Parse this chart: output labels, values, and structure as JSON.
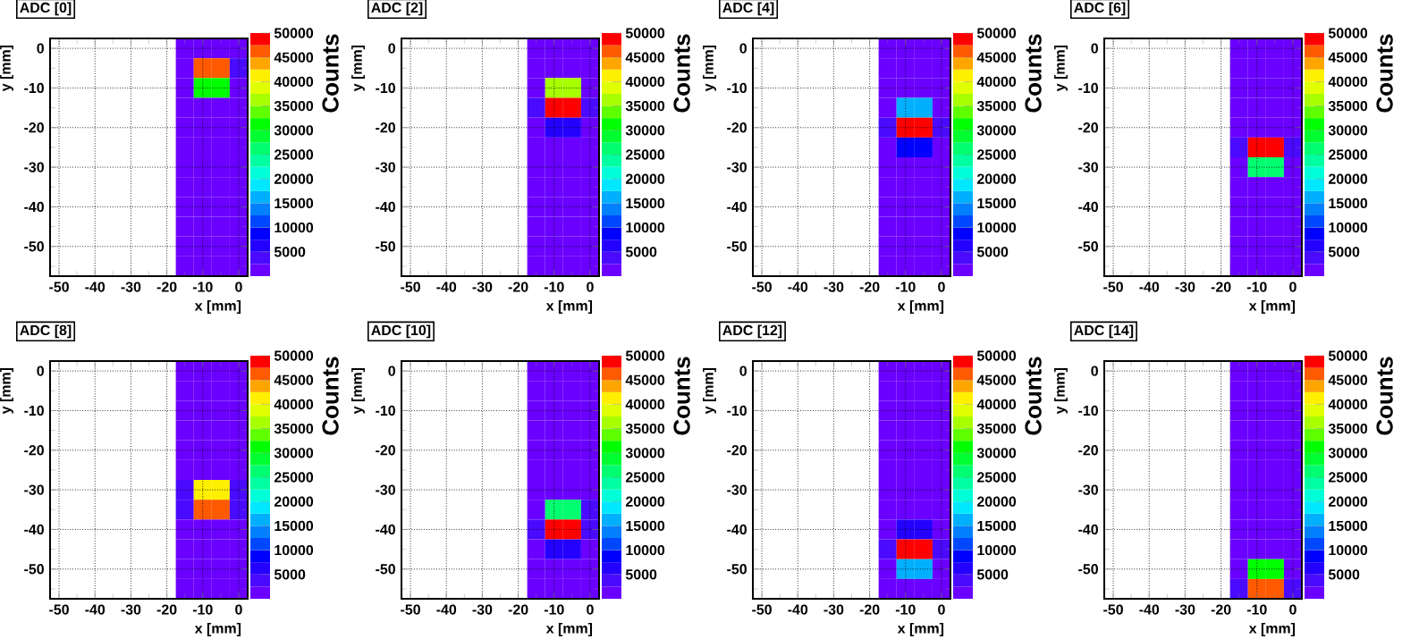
{
  "chart_data": [
    {
      "type": "heatmap",
      "title": "ADC [0]",
      "xlabel": "x [mm]",
      "ylabel": "y [mm]",
      "clabel": "Counts",
      "grid": true,
      "clim": [
        0,
        50000
      ],
      "cticks": [
        5000,
        10000,
        15000,
        20000,
        25000,
        30000,
        35000,
        40000,
        45000,
        50000
      ],
      "categories": [
        "-50",
        null,
        "-40",
        null,
        "-30",
        null,
        "-20",
        null,
        "-10",
        null,
        "0"
      ],
      "y_categories": [
        "0",
        null,
        "-10",
        null,
        "-20",
        null,
        "-30",
        null,
        "-40",
        null,
        "-50",
        null
      ],
      "cells": [
        [
          null,
          null,
          null,
          null,
          null,
          null,
          null,
          1000,
          1000,
          1000,
          1000
        ],
        [
          null,
          null,
          null,
          null,
          null,
          null,
          null,
          2000,
          45000,
          45000,
          3000
        ],
        [
          null,
          null,
          null,
          null,
          null,
          null,
          null,
          2000,
          30000,
          30000,
          2000
        ],
        [
          null,
          null,
          null,
          null,
          null,
          null,
          null,
          1000,
          1000,
          1000,
          1000
        ],
        [
          null,
          null,
          null,
          null,
          null,
          null,
          null,
          1000,
          1000,
          1000,
          1000
        ],
        [
          null,
          null,
          null,
          null,
          null,
          null,
          null,
          1000,
          1000,
          1000,
          1000
        ],
        [
          null,
          null,
          null,
          null,
          null,
          null,
          null,
          1000,
          1000,
          1000,
          1000
        ],
        [
          null,
          null,
          null,
          null,
          null,
          null,
          null,
          1000,
          1000,
          1000,
          1000
        ],
        [
          null,
          null,
          null,
          null,
          null,
          null,
          null,
          1000,
          1000,
          1000,
          1000
        ],
        [
          null,
          null,
          null,
          null,
          null,
          null,
          null,
          1000,
          1000,
          1000,
          1000
        ],
        [
          null,
          null,
          null,
          null,
          null,
          null,
          null,
          1000,
          1000,
          1000,
          1000
        ],
        [
          null,
          null,
          null,
          null,
          null,
          null,
          null,
          1000,
          1000,
          1000,
          1000
        ]
      ]
    },
    {
      "type": "heatmap",
      "title": "ADC [2]",
      "xlabel": "x [mm]",
      "ylabel": "y [mm]",
      "clabel": "Counts",
      "grid": true,
      "clim": [
        0,
        50000
      ],
      "cticks": [
        5000,
        10000,
        15000,
        20000,
        25000,
        30000,
        35000,
        40000,
        45000,
        50000
      ],
      "categories": [
        "-50",
        null,
        "-40",
        null,
        "-30",
        null,
        "-20",
        null,
        "-10",
        null,
        "0"
      ],
      "y_categories": [
        "0",
        null,
        "-10",
        null,
        "-20",
        null,
        "-30",
        null,
        "-40",
        null,
        "-50",
        null
      ],
      "cells": [
        [
          null,
          null,
          null,
          null,
          null,
          null,
          null,
          1000,
          1000,
          1000,
          1000
        ],
        [
          null,
          null,
          null,
          null,
          null,
          null,
          null,
          1000,
          1000,
          1000,
          1000
        ],
        [
          null,
          null,
          null,
          null,
          null,
          null,
          null,
          2000,
          35000,
          35000,
          2000
        ],
        [
          null,
          null,
          null,
          null,
          null,
          null,
          null,
          3000,
          50000,
          50000,
          3000
        ],
        [
          null,
          null,
          null,
          null,
          null,
          null,
          null,
          1000,
          5000,
          5000,
          1000
        ],
        [
          null,
          null,
          null,
          null,
          null,
          null,
          null,
          1000,
          1000,
          1000,
          1000
        ],
        [
          null,
          null,
          null,
          null,
          null,
          null,
          null,
          1000,
          1000,
          1000,
          1000
        ],
        [
          null,
          null,
          null,
          null,
          null,
          null,
          null,
          1000,
          1000,
          1000,
          1000
        ],
        [
          null,
          null,
          null,
          null,
          null,
          null,
          null,
          1000,
          1000,
          1000,
          1000
        ],
        [
          null,
          null,
          null,
          null,
          null,
          null,
          null,
          1000,
          1000,
          1000,
          1000
        ],
        [
          null,
          null,
          null,
          null,
          null,
          null,
          null,
          1000,
          1000,
          1000,
          1000
        ],
        [
          null,
          null,
          null,
          null,
          null,
          null,
          null,
          1000,
          1000,
          1000,
          1000
        ]
      ]
    },
    {
      "type": "heatmap",
      "title": "ADC [4]",
      "xlabel": "x [mm]",
      "ylabel": "y [mm]",
      "clabel": "Counts",
      "grid": true,
      "clim": [
        0,
        50000
      ],
      "cticks": [
        5000,
        10000,
        15000,
        20000,
        25000,
        30000,
        35000,
        40000,
        45000,
        50000
      ],
      "categories": [
        "-50",
        null,
        "-40",
        null,
        "-30",
        null,
        "-20",
        null,
        "-10",
        null,
        "0"
      ],
      "y_categories": [
        "0",
        null,
        "-10",
        null,
        "-20",
        null,
        "-30",
        null,
        "-40",
        null,
        "-50",
        null
      ],
      "cells": [
        [
          null,
          null,
          null,
          null,
          null,
          null,
          null,
          1000,
          1000,
          1000,
          1000
        ],
        [
          null,
          null,
          null,
          null,
          null,
          null,
          null,
          1000,
          1000,
          1000,
          1000
        ],
        [
          null,
          null,
          null,
          null,
          null,
          null,
          null,
          1000,
          1000,
          1000,
          1000
        ],
        [
          null,
          null,
          null,
          null,
          null,
          null,
          null,
          1000,
          15000,
          15000,
          1000
        ],
        [
          null,
          null,
          null,
          null,
          null,
          null,
          null,
          3000,
          50000,
          50000,
          3000
        ],
        [
          null,
          null,
          null,
          null,
          null,
          null,
          null,
          1000,
          8000,
          8000,
          1000
        ],
        [
          null,
          null,
          null,
          null,
          null,
          null,
          null,
          1000,
          1000,
          1000,
          1000
        ],
        [
          null,
          null,
          null,
          null,
          null,
          null,
          null,
          1000,
          1000,
          1000,
          1000
        ],
        [
          null,
          null,
          null,
          null,
          null,
          null,
          null,
          1000,
          1000,
          1000,
          1000
        ],
        [
          null,
          null,
          null,
          null,
          null,
          null,
          null,
          1000,
          1000,
          1000,
          1000
        ],
        [
          null,
          null,
          null,
          null,
          null,
          null,
          null,
          1000,
          1000,
          1000,
          1000
        ],
        [
          null,
          null,
          null,
          null,
          null,
          null,
          null,
          1000,
          1000,
          1000,
          1000
        ]
      ]
    },
    {
      "type": "heatmap",
      "title": "ADC [6]",
      "xlabel": "x [mm]",
      "ylabel": "y [mm]",
      "clabel": "Counts",
      "grid": true,
      "clim": [
        0,
        50000
      ],
      "cticks": [
        5000,
        10000,
        15000,
        20000,
        25000,
        30000,
        35000,
        40000,
        45000,
        50000
      ],
      "categories": [
        "-50",
        null,
        "-40",
        null,
        "-30",
        null,
        "-20",
        null,
        "-10",
        null,
        "0"
      ],
      "y_categories": [
        "0",
        null,
        "-10",
        null,
        "-20",
        null,
        "-30",
        null,
        "-40",
        null,
        "-50",
        null
      ],
      "cells": [
        [
          null,
          null,
          null,
          null,
          null,
          null,
          null,
          1000,
          1000,
          1000,
          1000
        ],
        [
          null,
          null,
          null,
          null,
          null,
          null,
          null,
          1000,
          1000,
          1000,
          1000
        ],
        [
          null,
          null,
          null,
          null,
          null,
          null,
          null,
          1000,
          1000,
          1000,
          1000
        ],
        [
          null,
          null,
          null,
          null,
          null,
          null,
          null,
          1000,
          1000,
          1000,
          1000
        ],
        [
          null,
          null,
          null,
          null,
          null,
          null,
          null,
          1000,
          1000,
          1000,
          1000
        ],
        [
          null,
          null,
          null,
          null,
          null,
          null,
          null,
          3000,
          50000,
          50000,
          3000
        ],
        [
          null,
          null,
          null,
          null,
          null,
          null,
          null,
          2000,
          25000,
          25000,
          2000
        ],
        [
          null,
          null,
          null,
          null,
          null,
          null,
          null,
          1000,
          1000,
          1000,
          1000
        ],
        [
          null,
          null,
          null,
          null,
          null,
          null,
          null,
          1000,
          1000,
          1000,
          1000
        ],
        [
          null,
          null,
          null,
          null,
          null,
          null,
          null,
          1000,
          1000,
          1000,
          1000
        ],
        [
          null,
          null,
          null,
          null,
          null,
          null,
          null,
          1000,
          1000,
          1000,
          1000
        ],
        [
          null,
          null,
          null,
          null,
          null,
          null,
          null,
          1000,
          1000,
          1000,
          1000
        ]
      ]
    },
    {
      "type": "heatmap",
      "title": "ADC [8]",
      "xlabel": "x [mm]",
      "ylabel": "y [mm]",
      "clabel": "Counts",
      "grid": true,
      "clim": [
        0,
        50000
      ],
      "cticks": [
        5000,
        10000,
        15000,
        20000,
        25000,
        30000,
        35000,
        40000,
        45000,
        50000
      ],
      "categories": [
        "-50",
        null,
        "-40",
        null,
        "-30",
        null,
        "-20",
        null,
        "-10",
        null,
        "0"
      ],
      "y_categories": [
        "0",
        null,
        "-10",
        null,
        "-20",
        null,
        "-30",
        null,
        "-40",
        null,
        "-50",
        null
      ],
      "cells": [
        [
          null,
          null,
          null,
          null,
          null,
          null,
          null,
          1000,
          1000,
          1000,
          1000
        ],
        [
          null,
          null,
          null,
          null,
          null,
          null,
          null,
          1000,
          1000,
          1000,
          1000
        ],
        [
          null,
          null,
          null,
          null,
          null,
          null,
          null,
          1000,
          1000,
          1000,
          1000
        ],
        [
          null,
          null,
          null,
          null,
          null,
          null,
          null,
          1000,
          1000,
          1000,
          1000
        ],
        [
          null,
          null,
          null,
          null,
          null,
          null,
          null,
          1000,
          1000,
          1000,
          1000
        ],
        [
          null,
          null,
          null,
          null,
          null,
          null,
          null,
          1000,
          1000,
          1000,
          1000
        ],
        [
          null,
          null,
          null,
          null,
          null,
          null,
          null,
          3000,
          40000,
          40000,
          4000
        ],
        [
          null,
          null,
          null,
          null,
          null,
          null,
          null,
          3000,
          45000,
          45000,
          3000
        ],
        [
          null,
          null,
          null,
          null,
          null,
          null,
          null,
          1000,
          1000,
          1000,
          1000
        ],
        [
          null,
          null,
          null,
          null,
          null,
          null,
          null,
          1000,
          1000,
          1000,
          1000
        ],
        [
          null,
          null,
          null,
          null,
          null,
          null,
          null,
          1000,
          1000,
          1000,
          1000
        ],
        [
          null,
          null,
          null,
          null,
          null,
          null,
          null,
          1000,
          1000,
          1000,
          1000
        ]
      ]
    },
    {
      "type": "heatmap",
      "title": "ADC [10]",
      "xlabel": "x [mm]",
      "ylabel": "y [mm]",
      "clabel": "Counts",
      "grid": true,
      "clim": [
        0,
        50000
      ],
      "cticks": [
        5000,
        10000,
        15000,
        20000,
        25000,
        30000,
        35000,
        40000,
        45000,
        50000
      ],
      "categories": [
        "-50",
        null,
        "-40",
        null,
        "-30",
        null,
        "-20",
        null,
        "-10",
        null,
        "0"
      ],
      "y_categories": [
        "0",
        null,
        "-10",
        null,
        "-20",
        null,
        "-30",
        null,
        "-40",
        null,
        "-50",
        null
      ],
      "cells": [
        [
          null,
          null,
          null,
          null,
          null,
          null,
          null,
          1000,
          1000,
          1000,
          1000
        ],
        [
          null,
          null,
          null,
          null,
          null,
          null,
          null,
          1000,
          1000,
          1000,
          1000
        ],
        [
          null,
          null,
          null,
          null,
          null,
          null,
          null,
          1000,
          1000,
          1000,
          1000
        ],
        [
          null,
          null,
          null,
          null,
          null,
          null,
          null,
          1000,
          1000,
          1000,
          1000
        ],
        [
          null,
          null,
          null,
          null,
          null,
          null,
          null,
          1000,
          1000,
          1000,
          1000
        ],
        [
          null,
          null,
          null,
          null,
          null,
          null,
          null,
          1000,
          1000,
          1000,
          1000
        ],
        [
          null,
          null,
          null,
          null,
          null,
          null,
          null,
          1000,
          1000,
          1000,
          1000
        ],
        [
          null,
          null,
          null,
          null,
          null,
          null,
          null,
          2000,
          25000,
          25000,
          4000
        ],
        [
          null,
          null,
          null,
          null,
          null,
          null,
          null,
          3000,
          50000,
          50000,
          3000
        ],
        [
          null,
          null,
          null,
          null,
          null,
          null,
          null,
          1000,
          5000,
          5000,
          1000
        ],
        [
          null,
          null,
          null,
          null,
          null,
          null,
          null,
          1000,
          1000,
          1000,
          1000
        ],
        [
          null,
          null,
          null,
          null,
          null,
          null,
          null,
          1000,
          1000,
          1000,
          1000
        ]
      ]
    },
    {
      "type": "heatmap",
      "title": "ADC [12]",
      "xlabel": "x [mm]",
      "ylabel": "y [mm]",
      "clabel": "Counts",
      "grid": true,
      "clim": [
        0,
        50000
      ],
      "cticks": [
        5000,
        10000,
        15000,
        20000,
        25000,
        30000,
        35000,
        40000,
        45000,
        50000
      ],
      "categories": [
        "-50",
        null,
        "-40",
        null,
        "-30",
        null,
        "-20",
        null,
        "-10",
        null,
        "0"
      ],
      "y_categories": [
        "0",
        null,
        "-10",
        null,
        "-20",
        null,
        "-30",
        null,
        "-40",
        null,
        "-50",
        null
      ],
      "cells": [
        [
          null,
          null,
          null,
          null,
          null,
          null,
          null,
          1000,
          1000,
          1000,
          1000
        ],
        [
          null,
          null,
          null,
          null,
          null,
          null,
          null,
          1000,
          1000,
          1000,
          1000
        ],
        [
          null,
          null,
          null,
          null,
          null,
          null,
          null,
          1000,
          1000,
          1000,
          1000
        ],
        [
          null,
          null,
          null,
          null,
          null,
          null,
          null,
          1000,
          1000,
          1000,
          1000
        ],
        [
          null,
          null,
          null,
          null,
          null,
          null,
          null,
          1000,
          1000,
          1000,
          1000
        ],
        [
          null,
          null,
          null,
          null,
          null,
          null,
          null,
          1000,
          1000,
          1000,
          1000
        ],
        [
          null,
          null,
          null,
          null,
          null,
          null,
          null,
          1000,
          1000,
          1000,
          1000
        ],
        [
          null,
          null,
          null,
          null,
          null,
          null,
          null,
          1000,
          1000,
          1000,
          1000
        ],
        [
          null,
          null,
          null,
          null,
          null,
          null,
          null,
          1000,
          5000,
          5000,
          1000
        ],
        [
          null,
          null,
          null,
          null,
          null,
          null,
          null,
          3000,
          50000,
          50000,
          3000
        ],
        [
          null,
          null,
          null,
          null,
          null,
          null,
          null,
          1000,
          15000,
          15000,
          1000
        ],
        [
          null,
          null,
          null,
          null,
          null,
          null,
          null,
          1000,
          1000,
          1000,
          1000
        ]
      ]
    },
    {
      "type": "heatmap",
      "title": "ADC [14]",
      "xlabel": "x [mm]",
      "ylabel": "y [mm]",
      "clabel": "Counts",
      "grid": true,
      "clim": [
        0,
        50000
      ],
      "cticks": [
        5000,
        10000,
        15000,
        20000,
        25000,
        30000,
        35000,
        40000,
        45000,
        50000
      ],
      "categories": [
        "-50",
        null,
        "-40",
        null,
        "-30",
        null,
        "-20",
        null,
        "-10",
        null,
        "0"
      ],
      "y_categories": [
        "0",
        null,
        "-10",
        null,
        "-20",
        null,
        "-30",
        null,
        "-40",
        null,
        "-50",
        null
      ],
      "cells": [
        [
          null,
          null,
          null,
          null,
          null,
          null,
          null,
          1000,
          1000,
          1000,
          1000
        ],
        [
          null,
          null,
          null,
          null,
          null,
          null,
          null,
          1000,
          1000,
          1000,
          1000
        ],
        [
          null,
          null,
          null,
          null,
          null,
          null,
          null,
          1000,
          1000,
          1000,
          1000
        ],
        [
          null,
          null,
          null,
          null,
          null,
          null,
          null,
          1000,
          1000,
          1000,
          1000
        ],
        [
          null,
          null,
          null,
          null,
          null,
          null,
          null,
          1000,
          1000,
          1000,
          1000
        ],
        [
          null,
          null,
          null,
          null,
          null,
          null,
          null,
          1000,
          1000,
          1000,
          1000
        ],
        [
          null,
          null,
          null,
          null,
          null,
          null,
          null,
          1000,
          1000,
          1000,
          1000
        ],
        [
          null,
          null,
          null,
          null,
          null,
          null,
          null,
          1000,
          1000,
          1000,
          1000
        ],
        [
          null,
          null,
          null,
          null,
          null,
          null,
          null,
          1000,
          1000,
          1000,
          1000
        ],
        [
          null,
          null,
          null,
          null,
          null,
          null,
          null,
          1000,
          1000,
          1000,
          1000
        ],
        [
          null,
          null,
          null,
          null,
          null,
          null,
          null,
          2000,
          30000,
          30000,
          2000
        ],
        [
          null,
          null,
          null,
          null,
          null,
          null,
          null,
          3000,
          45000,
          45000,
          3000
        ]
      ]
    }
  ]
}
